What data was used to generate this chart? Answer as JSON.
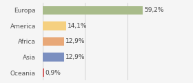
{
  "categories": [
    "Europa",
    "America",
    "Africa",
    "Asia",
    "Oceania"
  ],
  "values": [
    59.2,
    14.1,
    12.9,
    12.9,
    0.9
  ],
  "labels": [
    "59,2%",
    "14,1%",
    "12,9%",
    "12,9%",
    "0,9%"
  ],
  "bar_colors": [
    "#a8bb8a",
    "#f5d080",
    "#e8a878",
    "#7b8fc0",
    "#d45f5f"
  ],
  "background_color": "#f5f5f5",
  "label_fontsize": 6.5,
  "tick_fontsize": 6.5,
  "xlim": [
    0,
    75
  ],
  "grid_ticks": [
    0,
    25,
    50,
    75
  ],
  "grid_color": "#cccccc",
  "bar_height": 0.55
}
